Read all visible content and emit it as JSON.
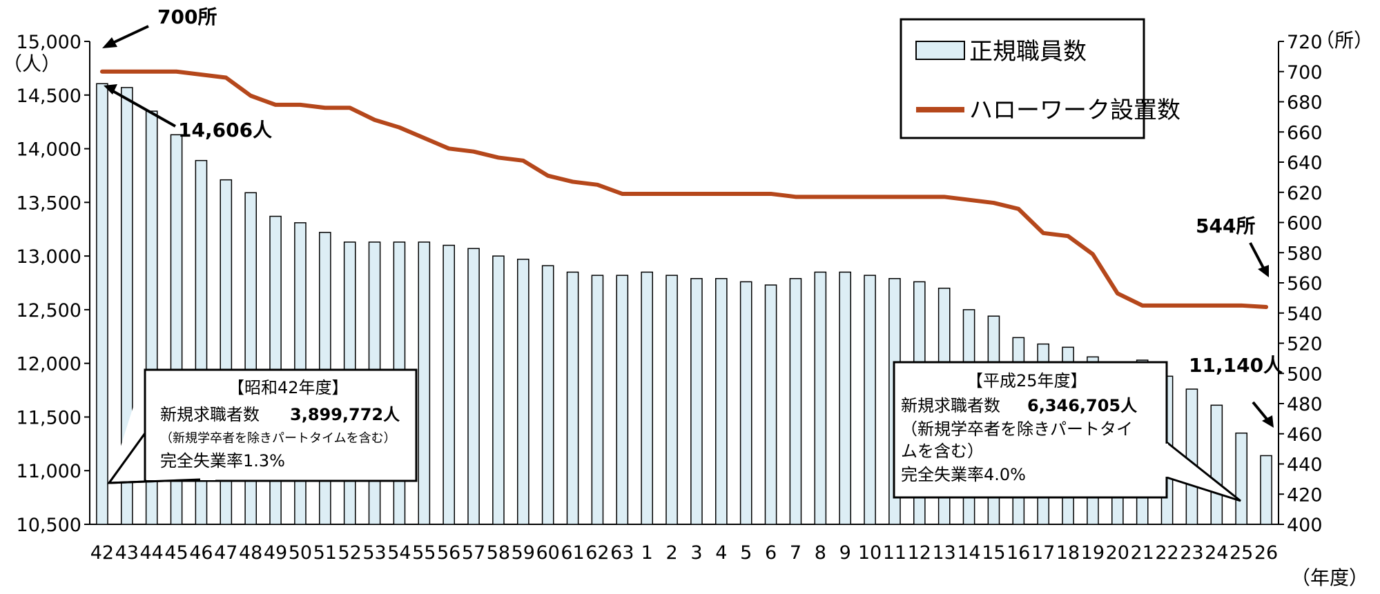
{
  "chart_data": {
    "type": "bar",
    "categories": [
      "42",
      "43",
      "44",
      "45",
      "46",
      "47",
      "48",
      "49",
      "50",
      "51",
      "52",
      "53",
      "54",
      "55",
      "56",
      "57",
      "58",
      "59",
      "60",
      "61",
      "62",
      "63",
      "1",
      "2",
      "3",
      "4",
      "5",
      "6",
      "7",
      "8",
      "9",
      "10",
      "11",
      "12",
      "13",
      "14",
      "15",
      "16",
      "17",
      "18",
      "19",
      "20",
      "21",
      "22",
      "23",
      "24",
      "25",
      "26"
    ],
    "series": [
      {
        "name": "正規職員数",
        "type": "bar",
        "axis": "left",
        "color": "#ddeef5",
        "values": [
          14606,
          14570,
          14350,
          14130,
          13890,
          13710,
          13590,
          13370,
          13310,
          13220,
          13130,
          13130,
          13130,
          13130,
          13100,
          13070,
          13000,
          12970,
          12910,
          12850,
          12820,
          12820,
          12850,
          12820,
          12790,
          12790,
          12760,
          12730,
          12790,
          12850,
          12850,
          12820,
          12790,
          12760,
          12700,
          12500,
          12440,
          12240,
          12180,
          12150,
          12060,
          12010,
          12030,
          11880,
          11760,
          11610,
          11350,
          11140
        ]
      },
      {
        "name": "ハローワーク設置数",
        "type": "line",
        "axis": "right",
        "color": "#b5471b",
        "values": [
          700,
          700,
          700,
          700,
          698,
          696,
          684,
          678,
          678,
          676,
          676,
          668,
          663,
          656,
          649,
          647,
          643,
          641,
          631,
          627,
          625,
          619,
          619,
          619,
          619,
          619,
          619,
          619,
          617,
          617,
          617,
          617,
          617,
          617,
          617,
          615,
          613,
          609,
          593,
          591,
          579,
          553,
          545,
          545,
          545,
          545,
          545,
          544
        ]
      }
    ],
    "left_axis": {
      "unit": "（人）",
      "ylim": [
        10500,
        15000
      ],
      "ticks": [
        "10,500",
        "11,000",
        "11,500",
        "12,000",
        "12,500",
        "13,000",
        "13,500",
        "14,000",
        "14,500",
        "15,000"
      ]
    },
    "right_axis": {
      "unit": "（所）",
      "ylim": [
        400,
        720
      ],
      "ticks": [
        "400",
        "420",
        "440",
        "460",
        "480",
        "500",
        "520",
        "540",
        "560",
        "580",
        "600",
        "620",
        "640",
        "660",
        "680",
        "700",
        "720"
      ]
    },
    "x_unit": "（年度）",
    "legend_position": "top-right",
    "annotations": {
      "start_offices": "700所",
      "start_staff": "14,606人",
      "end_offices": "544所",
      "end_staff": "11,140人"
    },
    "callouts": [
      {
        "title": "【昭和42年度】",
        "line1_label": "新規求職者数",
        "line1_value": "3,899,772人",
        "note": "（新規学卒者を除きパートタイムを含む）",
        "rate": "完全失業率1.3%"
      },
      {
        "title": "【平成25年度】",
        "line1_label": "新規求職者数",
        "line1_value": "6,346,705人",
        "note1": "（新規学卒者を除きパートタイ",
        "note2": "ムを含む）",
        "rate": "完全失業率4.0%"
      }
    ]
  }
}
